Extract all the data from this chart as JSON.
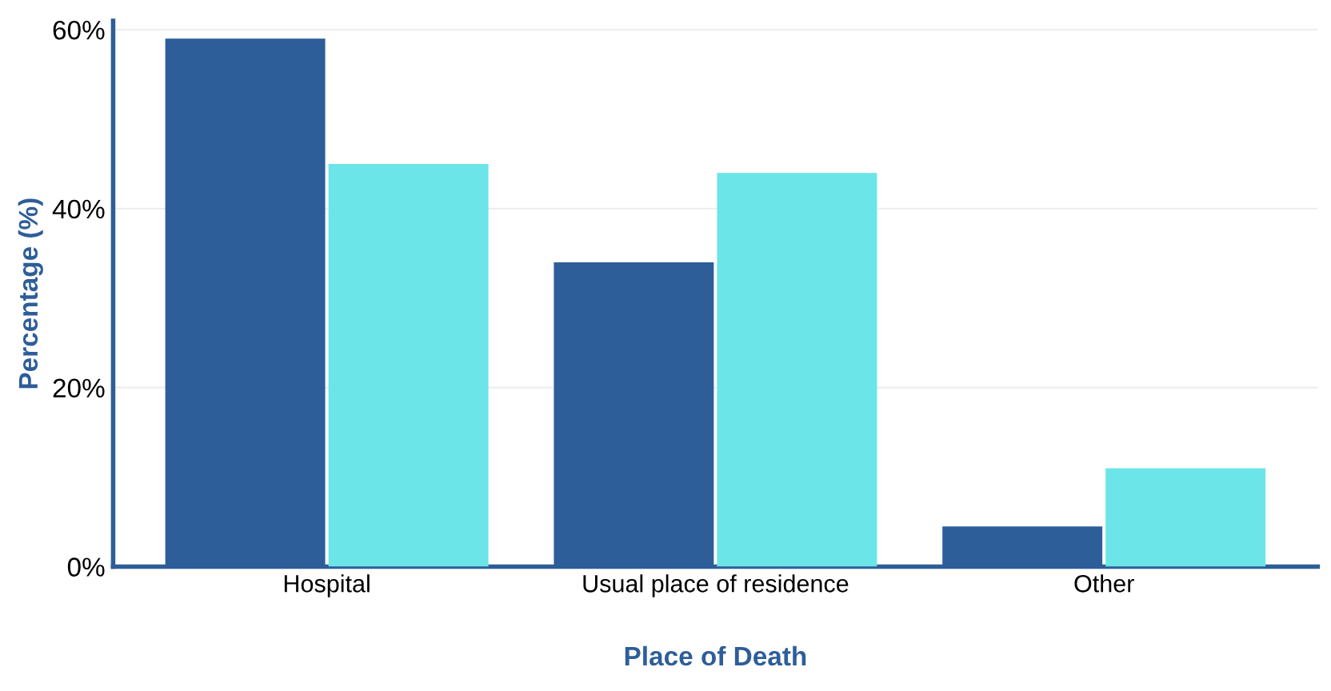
{
  "chart_data": {
    "type": "bar",
    "xlabel": "Place of Death",
    "ylabel": "Percentage (%)",
    "categories": [
      "Hospital",
      "Usual place of residence",
      "Other"
    ],
    "series": [
      {
        "color": "#2e5e99",
        "values": [
          59,
          34,
          4.5
        ]
      },
      {
        "color": "#6be5e8",
        "values": [
          45,
          44,
          11
        ]
      }
    ],
    "ylim": [
      0,
      61
    ],
    "yticks": [
      {
        "value": 0,
        "label": "0%"
      },
      {
        "value": 20,
        "label": "20%"
      },
      {
        "value": 40,
        "label": "40%"
      },
      {
        "value": 60,
        "label": "60%"
      }
    ],
    "grid": "y"
  }
}
